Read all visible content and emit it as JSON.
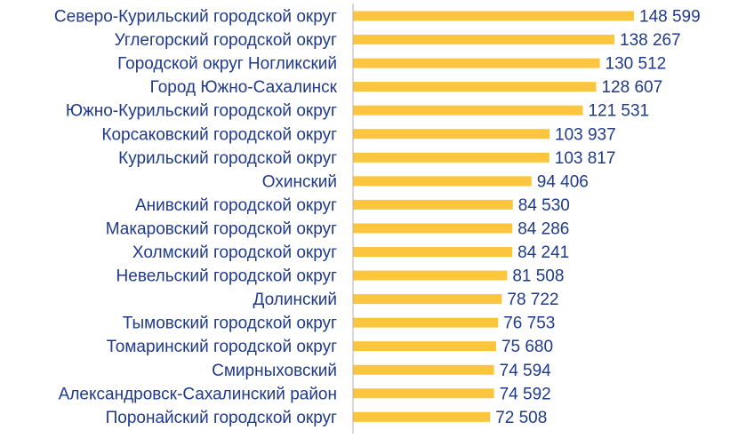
{
  "chart_data": {
    "type": "bar",
    "orientation": "horizontal",
    "title": "",
    "xlabel": "",
    "ylabel": "",
    "grid": false,
    "legend": "none",
    "bar_color": "#fbc53d",
    "label_color": "#1f3a8a",
    "axis_color": "#b0b0b0",
    "xlim": [
      0,
      150000
    ],
    "categories": [
      "Северо-Курильский городской округ",
      "Углегорский городской округ",
      "Городской округ Ногликский",
      "Город Южно-Сахалинск",
      "Южно-Курильский городской округ",
      "Корсаковский городской округ",
      "Курильский городской округ",
      "Охинский",
      "Анивский городской округ",
      "Макаровский городской округ",
      "Холмский городской округ",
      "Невельский городской округ",
      "Долинский",
      "Тымовский городской округ",
      "Томаринский городской округ",
      "Смирныховский",
      "Александровск-Сахалинский район",
      "Поронайский городской округ"
    ],
    "values": [
      148599,
      138267,
      130512,
      128607,
      121531,
      103937,
      103817,
      94406,
      84530,
      84286,
      84241,
      81508,
      78722,
      76753,
      75680,
      74594,
      74592,
      72508
    ],
    "value_labels": [
      "148 599",
      "138 267",
      "130 512",
      "128 607",
      "121 531",
      "103 937",
      "103 817",
      "94 406",
      "84 530",
      "84 286",
      "84 241",
      "81 508",
      "78 722",
      "76 753",
      "75 680",
      "74 594",
      "74 592",
      "72 508"
    ]
  }
}
